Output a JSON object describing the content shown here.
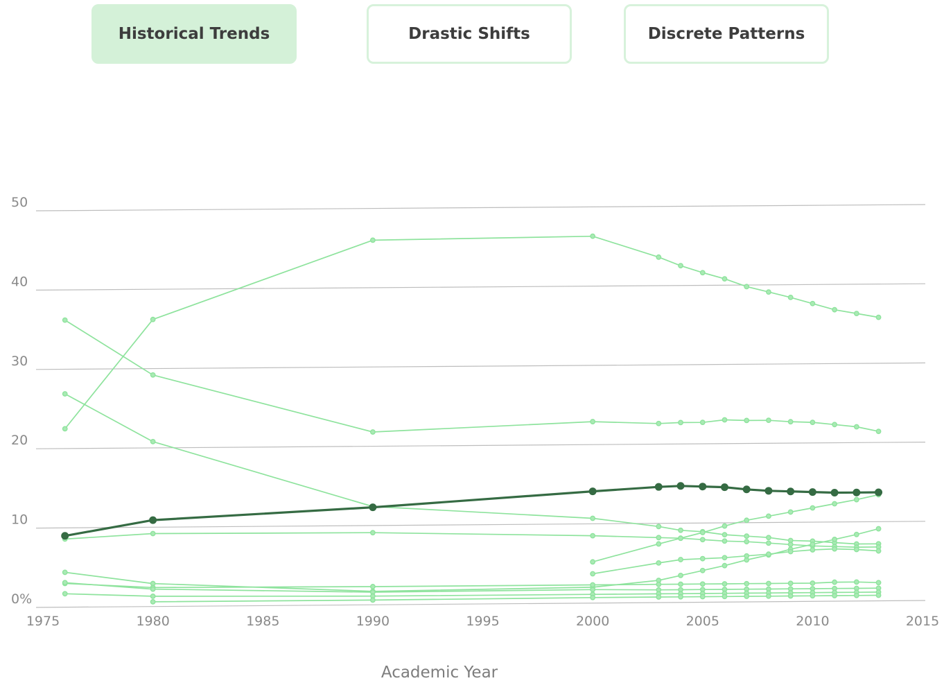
{
  "tabs": [
    {
      "label": "Historical Trends",
      "active": true
    },
    {
      "label": "Drastic Shifts",
      "active": false
    },
    {
      "label": "Discrete Patterns",
      "active": false
    }
  ],
  "colors": {
    "series_light": "#8ee39d",
    "series_highlight": "#356b43",
    "gridline": "#bdbdbd",
    "tab_active_bg": "#d4f1d8",
    "tab_border": "#d7f2db"
  },
  "chart_data": {
    "type": "line",
    "title": "",
    "xlabel": "Academic Year",
    "ylabel": "",
    "xlim": [
      1975,
      2015
    ],
    "ylim": [
      0,
      50
    ],
    "x_ticks": [
      "1975",
      "1980",
      "1985",
      "1990",
      "1995",
      "2000",
      "2005",
      "2010",
      "2015"
    ],
    "y_ticks": [
      "0%",
      "10",
      "20",
      "30",
      "40",
      "50"
    ],
    "grid": true,
    "series": [
      {
        "highlight": false,
        "points": [
          [
            1976,
            22.5
          ],
          [
            1980,
            36.2
          ],
          [
            1990,
            46
          ],
          [
            2000,
            46.3
          ],
          [
            2003,
            43.6
          ],
          [
            2004,
            42.5
          ],
          [
            2005,
            41.6
          ],
          [
            2006,
            40.8
          ],
          [
            2007,
            39.8
          ],
          [
            2008,
            39.1
          ],
          [
            2009,
            38.4
          ],
          [
            2010,
            37.6
          ],
          [
            2011,
            36.8
          ],
          [
            2012,
            36.3
          ],
          [
            2013,
            35.8
          ]
        ]
      },
      {
        "highlight": false,
        "points": [
          [
            1976,
            36.2
          ],
          [
            1980,
            29.2
          ],
          [
            1990,
            21.8
          ],
          [
            2000,
            22.9
          ],
          [
            2003,
            22.6
          ],
          [
            2004,
            22.7
          ],
          [
            2005,
            22.7
          ],
          [
            2006,
            23
          ],
          [
            2007,
            22.9
          ],
          [
            2008,
            22.9
          ],
          [
            2009,
            22.7
          ],
          [
            2010,
            22.6
          ],
          [
            2011,
            22.3
          ],
          [
            2012,
            22
          ],
          [
            2013,
            21.4
          ]
        ]
      },
      {
        "highlight": false,
        "points": [
          [
            1976,
            26.9
          ],
          [
            1980,
            20.8
          ],
          [
            1990,
            12.4
          ],
          [
            2000,
            10.7
          ],
          [
            2003,
            9.6
          ],
          [
            2004,
            9.1
          ],
          [
            2005,
            8.9
          ],
          [
            2006,
            8.5
          ],
          [
            2007,
            8.3
          ],
          [
            2008,
            8.1
          ],
          [
            2009,
            7.7
          ],
          [
            2010,
            7.6
          ],
          [
            2011,
            7.4
          ],
          [
            2012,
            7.2
          ],
          [
            2013,
            7.2
          ]
        ]
      },
      {
        "highlight": false,
        "points": [
          [
            1976,
            8.6
          ],
          [
            1980,
            9.2
          ],
          [
            1990,
            9.1
          ],
          [
            2000,
            8.5
          ],
          [
            2003,
            8.2
          ],
          [
            2004,
            8.1
          ],
          [
            2005,
            7.9
          ],
          [
            2006,
            7.7
          ],
          [
            2007,
            7.6
          ],
          [
            2008,
            7.4
          ],
          [
            2009,
            7.2
          ],
          [
            2010,
            7
          ],
          [
            2011,
            6.9
          ],
          [
            2012,
            6.8
          ],
          [
            2013,
            6.8
          ]
        ]
      },
      {
        "highlight": true,
        "points": [
          [
            1976,
            9
          ],
          [
            1980,
            10.9
          ],
          [
            1990,
            12.3
          ],
          [
            2000,
            14.1
          ],
          [
            2003,
            14.6
          ],
          [
            2004,
            14.7
          ],
          [
            2005,
            14.6
          ],
          [
            2006,
            14.5
          ],
          [
            2007,
            14.2
          ],
          [
            2008,
            14
          ],
          [
            2009,
            13.9
          ],
          [
            2010,
            13.8
          ],
          [
            2011,
            13.7
          ],
          [
            2012,
            13.7
          ],
          [
            2013,
            13.7
          ]
        ]
      },
      {
        "highlight": false,
        "points": [
          [
            1976,
            4.4
          ],
          [
            1980,
            2.9
          ],
          [
            1990,
            1.7
          ],
          [
            2000,
            2
          ],
          [
            2003,
            2.8
          ],
          [
            2004,
            3.4
          ],
          [
            2005,
            4
          ],
          [
            2006,
            4.6
          ],
          [
            2007,
            5.3
          ],
          [
            2008,
            5.9
          ],
          [
            2009,
            6.6
          ],
          [
            2010,
            7.2
          ],
          [
            2011,
            7.8
          ],
          [
            2012,
            8.4
          ],
          [
            2013,
            9.1
          ]
        ]
      },
      {
        "highlight": false,
        "points": [
          [
            2000,
            5.2
          ],
          [
            2003,
            7.4
          ],
          [
            2004,
            8.1
          ],
          [
            2005,
            8.8
          ],
          [
            2006,
            9.6
          ],
          [
            2007,
            10.3
          ],
          [
            2008,
            10.8
          ],
          [
            2009,
            11.3
          ],
          [
            2010,
            11.8
          ],
          [
            2011,
            12.3
          ],
          [
            2012,
            12.8
          ],
          [
            2013,
            13.4
          ]
        ]
      },
      {
        "highlight": false,
        "points": [
          [
            2000,
            3.7
          ],
          [
            2003,
            5
          ],
          [
            2004,
            5.4
          ],
          [
            2005,
            5.5
          ],
          [
            2006,
            5.6
          ],
          [
            2007,
            5.8
          ],
          [
            2008,
            6
          ],
          [
            2009,
            6.3
          ],
          [
            2010,
            6.5
          ],
          [
            2011,
            6.6
          ],
          [
            2012,
            6.5
          ],
          [
            2013,
            6.3
          ]
        ]
      },
      {
        "highlight": false,
        "points": [
          [
            1976,
            3
          ],
          [
            1980,
            2.4
          ],
          [
            1990,
            2.3
          ],
          [
            2000,
            2.3
          ],
          [
            2003,
            2.3
          ],
          [
            2004,
            2.3
          ],
          [
            2005,
            2.3
          ],
          [
            2006,
            2.3
          ],
          [
            2007,
            2.3
          ],
          [
            2008,
            2.3
          ],
          [
            2009,
            2.3
          ],
          [
            2010,
            2.3
          ],
          [
            2011,
            2.4
          ],
          [
            2012,
            2.4
          ],
          [
            2013,
            2.3
          ]
        ]
      },
      {
        "highlight": false,
        "points": [
          [
            1976,
            3.1
          ],
          [
            1980,
            2.2
          ],
          [
            1990,
            1.6
          ],
          [
            2000,
            1.7
          ],
          [
            2003,
            1.6
          ],
          [
            2004,
            1.6
          ],
          [
            2005,
            1.6
          ],
          [
            2006,
            1.6
          ],
          [
            2007,
            1.6
          ],
          [
            2008,
            1.6
          ],
          [
            2009,
            1.6
          ],
          [
            2010,
            1.6
          ],
          [
            2011,
            1.6
          ],
          [
            2012,
            1.6
          ],
          [
            2013,
            1.6
          ]
        ]
      },
      {
        "highlight": false,
        "points": [
          [
            1976,
            1.7
          ],
          [
            1980,
            1.3
          ],
          [
            1990,
            1.1
          ],
          [
            2000,
            1.1
          ],
          [
            2003,
            1.1
          ],
          [
            2004,
            1.1
          ],
          [
            2005,
            1.1
          ],
          [
            2006,
            1.1
          ],
          [
            2007,
            1.1
          ],
          [
            2008,
            1.1
          ],
          [
            2009,
            1.1
          ],
          [
            2010,
            1.1
          ],
          [
            2011,
            1.1
          ],
          [
            2012,
            1.1
          ],
          [
            2013,
            1.1
          ]
        ]
      },
      {
        "highlight": false,
        "points": [
          [
            1980,
            0.6
          ],
          [
            1990,
            0.6
          ],
          [
            2000,
            0.7
          ],
          [
            2003,
            0.7
          ],
          [
            2004,
            0.7
          ],
          [
            2005,
            0.7
          ],
          [
            2006,
            0.7
          ],
          [
            2007,
            0.7
          ],
          [
            2008,
            0.7
          ],
          [
            2009,
            0.7
          ],
          [
            2010,
            0.7
          ],
          [
            2011,
            0.7
          ],
          [
            2012,
            0.7
          ],
          [
            2013,
            0.7
          ]
        ]
      }
    ]
  }
}
